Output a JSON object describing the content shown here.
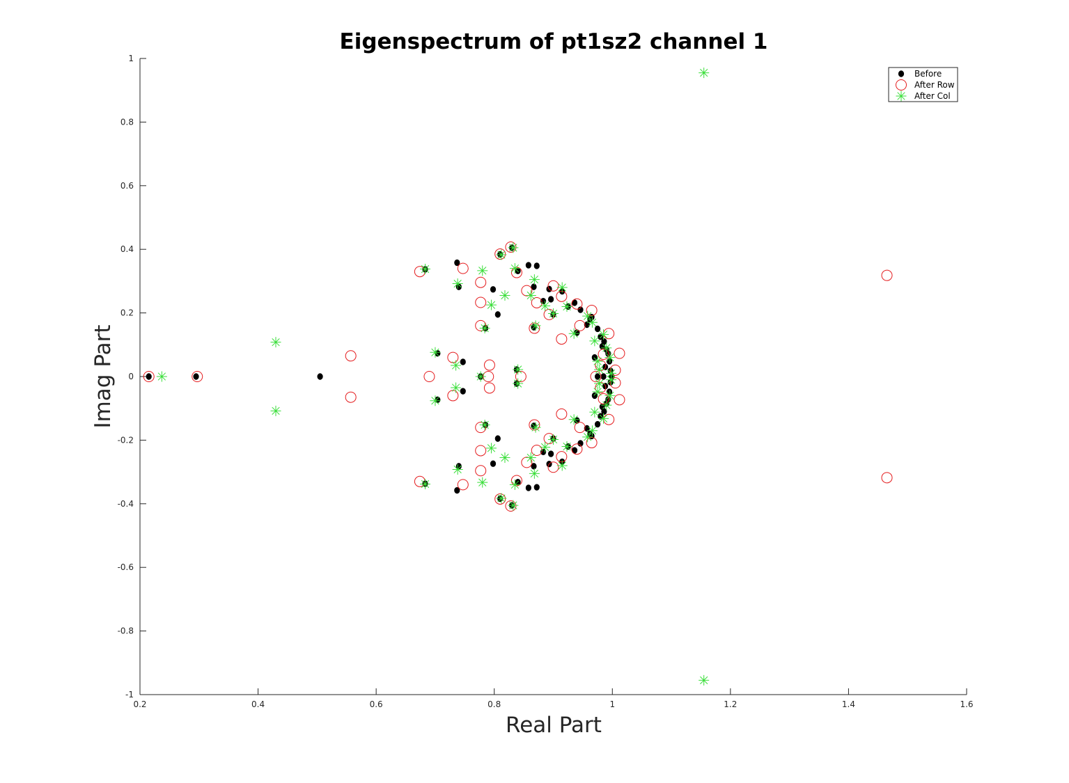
{
  "chart_data": {
    "type": "scatter",
    "title": "Eigenspectrum of pt1sz2 channel 1",
    "xlabel": "Real Part",
    "ylabel": "Imag Part",
    "xlim": [
      0.2,
      1.6
    ],
    "ylim": [
      -1,
      1
    ],
    "xticks": [
      "0.2",
      "0.4",
      "0.6",
      "0.8",
      "1",
      "1.2",
      "1.4",
      "1.6"
    ],
    "yticks": [
      "-1",
      "-0.8",
      "-0.6",
      "-0.4",
      "-0.2",
      "0",
      "0.2",
      "0.4",
      "0.6",
      "0.8",
      "1"
    ],
    "grid": false,
    "legend_position": "top-right",
    "symmetric_about_real_axis": true,
    "series": [
      {
        "name": "Before",
        "marker": "dot",
        "color": "#000000",
        "points": [
          [
            0.215,
            0.0
          ],
          [
            0.295,
            0.0
          ],
          [
            0.505,
            0.0
          ],
          [
            0.683,
            0.337
          ],
          [
            0.704,
            0.073
          ],
          [
            0.737,
            0.358
          ],
          [
            0.74,
            0.282
          ],
          [
            0.747,
            0.046
          ],
          [
            0.777,
            0.0
          ],
          [
            0.785,
            0.152
          ],
          [
            0.798,
            0.274
          ],
          [
            0.806,
            0.195
          ],
          [
            0.81,
            0.384
          ],
          [
            0.83,
            0.405
          ],
          [
            0.838,
            0.022
          ],
          [
            0.84,
            0.332
          ],
          [
            0.858,
            0.35
          ],
          [
            0.867,
            0.282
          ],
          [
            0.867,
            0.155
          ],
          [
            0.872,
            0.348
          ],
          [
            0.883,
            0.237
          ],
          [
            0.893,
            0.275
          ],
          [
            0.896,
            0.243
          ],
          [
            0.9,
            0.195
          ],
          [
            0.915,
            0.268
          ],
          [
            0.925,
            0.22
          ],
          [
            0.936,
            0.232
          ],
          [
            0.94,
            0.138
          ],
          [
            0.946,
            0.21
          ],
          [
            0.957,
            0.163
          ],
          [
            0.962,
            0.18
          ],
          [
            0.965,
            0.187
          ],
          [
            0.97,
            0.06
          ],
          [
            0.975,
            0.15
          ],
          [
            0.98,
            0.125
          ],
          [
            0.983,
            0.095
          ],
          [
            0.986,
            0.11
          ],
          [
            0.988,
            0.03
          ],
          [
            0.99,
            0.085
          ],
          [
            0.993,
            0.072
          ],
          [
            0.995,
            0.048
          ],
          [
            0.997,
            0.018
          ],
          [
            0.999,
            0.0
          ],
          [
            0.985,
            0.0
          ],
          [
            0.975,
            0.0
          ]
        ]
      },
      {
        "name": "After Row",
        "marker": "circle",
        "color": "#e41a1c",
        "points": [
          [
            0.215,
            0.0
          ],
          [
            0.297,
            0.0
          ],
          [
            0.557,
            0.065
          ],
          [
            0.674,
            0.33
          ],
          [
            0.69,
            0.0
          ],
          [
            0.73,
            0.06
          ],
          [
            0.747,
            0.34
          ],
          [
            0.777,
            0.296
          ],
          [
            0.777,
            0.233
          ],
          [
            0.777,
            0.16
          ],
          [
            0.792,
            0.036
          ],
          [
            0.79,
            0.0
          ],
          [
            0.81,
            0.385
          ],
          [
            0.828,
            0.407
          ],
          [
            0.838,
            0.327
          ],
          [
            0.845,
            0.0
          ],
          [
            0.855,
            0.27
          ],
          [
            0.872,
            0.232
          ],
          [
            0.868,
            0.152
          ],
          [
            0.893,
            0.195
          ],
          [
            0.9,
            0.285
          ],
          [
            0.914,
            0.118
          ],
          [
            0.914,
            0.252
          ],
          [
            0.94,
            0.228
          ],
          [
            0.945,
            0.16
          ],
          [
            0.965,
            0.208
          ],
          [
            0.972,
            0.0
          ],
          [
            0.98,
            0.035
          ],
          [
            0.985,
            0.07
          ],
          [
            0.994,
            0.135
          ],
          [
            1.005,
            0.02
          ],
          [
            1.012,
            0.073
          ],
          [
            1.465,
            0.318
          ]
        ]
      },
      {
        "name": "After Col",
        "marker": "star",
        "color": "#3ade3a",
        "points": [
          [
            0.237,
            0.0
          ],
          [
            0.43,
            0.108
          ],
          [
            0.683,
            0.338
          ],
          [
            0.7,
            0.076
          ],
          [
            0.735,
            0.035
          ],
          [
            0.738,
            0.292
          ],
          [
            0.777,
            0.0
          ],
          [
            0.78,
            0.333
          ],
          [
            0.784,
            0.152
          ],
          [
            0.795,
            0.225
          ],
          [
            0.812,
            0.383
          ],
          [
            0.818,
            0.255
          ],
          [
            0.832,
            0.405
          ],
          [
            0.84,
            0.022
          ],
          [
            0.835,
            0.34
          ],
          [
            0.862,
            0.255
          ],
          [
            0.868,
            0.305
          ],
          [
            0.87,
            0.16
          ],
          [
            0.886,
            0.222
          ],
          [
            0.9,
            0.198
          ],
          [
            0.915,
            0.28
          ],
          [
            0.923,
            0.22
          ],
          [
            0.935,
            0.135
          ],
          [
            0.958,
            0.19
          ],
          [
            0.966,
            0.17
          ],
          [
            0.97,
            0.112
          ],
          [
            0.975,
            0.048
          ],
          [
            0.978,
            0.022
          ],
          [
            0.985,
            0.132
          ],
          [
            0.99,
            0.09
          ],
          [
            0.996,
            0.06
          ],
          [
            0.998,
            0.01
          ],
          [
            1.155,
            0.955
          ]
        ]
      }
    ]
  }
}
